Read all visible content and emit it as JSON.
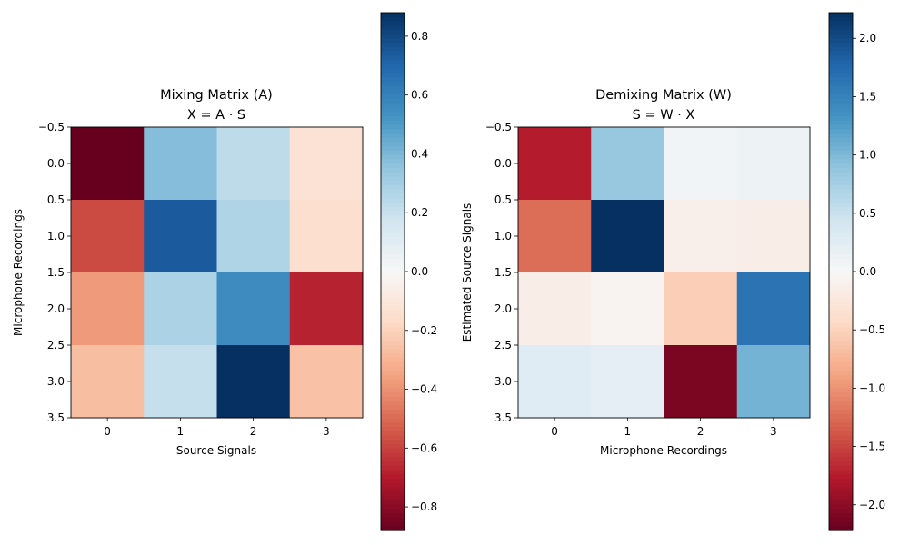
{
  "chart_data": [
    {
      "type": "heatmap",
      "title_line1": "Mixing Matrix (A)",
      "title_line2": "X = A · S",
      "xlabel": "Source Signals",
      "ylabel": "Microphone Recordings",
      "xticks": [
        "0",
        "1",
        "2",
        "3"
      ],
      "yticks": [
        "−0.5",
        "0.0",
        "0.5",
        "1.0",
        "1.5",
        "2.0",
        "2.5",
        "3.0",
        "3.5"
      ],
      "colormap": "RdBu",
      "vlim": [
        -0.88,
        0.88
      ],
      "colorbar_ticks": [
        {
          "value": 0.8,
          "label": "0.8"
        },
        {
          "value": 0.6,
          "label": "0.6"
        },
        {
          "value": 0.4,
          "label": "0.4"
        },
        {
          "value": 0.2,
          "label": "0.2"
        },
        {
          "value": 0.0,
          "label": "0.0"
        },
        {
          "value": -0.2,
          "label": "−0.2"
        },
        {
          "value": -0.4,
          "label": "−0.4"
        },
        {
          "value": -0.6,
          "label": "−0.6"
        },
        {
          "value": -0.8,
          "label": "−0.8"
        }
      ],
      "values": [
        [
          -0.88,
          0.38,
          0.23,
          -0.13
        ],
        [
          -0.58,
          0.74,
          0.27,
          -0.15
        ],
        [
          -0.38,
          0.28,
          0.56,
          -0.68
        ],
        [
          -0.27,
          0.21,
          0.88,
          -0.26
        ]
      ]
    },
    {
      "type": "heatmap",
      "title_line1": "Demixing Matrix (W)",
      "title_line2": "S = W · X",
      "xlabel": "Microphone Recordings",
      "ylabel": "Estimated Source Signals",
      "xticks": [
        "0",
        "1",
        "2",
        "3"
      ],
      "yticks": [
        "−0.5",
        "0.0",
        "0.5",
        "1.0",
        "1.5",
        "2.0",
        "2.5",
        "3.0",
        "3.5"
      ],
      "colormap": "RdBu",
      "vlim": [
        -2.22,
        2.22
      ],
      "colorbar_ticks": [
        {
          "value": 2.0,
          "label": "2.0"
        },
        {
          "value": 1.5,
          "label": "1.5"
        },
        {
          "value": 1.0,
          "label": "1.0"
        },
        {
          "value": 0.5,
          "label": "0.5"
        },
        {
          "value": 0.0,
          "label": "0.0"
        },
        {
          "value": -0.5,
          "label": "−0.5"
        },
        {
          "value": -1.0,
          "label": "−1.0"
        },
        {
          "value": -1.5,
          "label": "−1.5"
        },
        {
          "value": -2.0,
          "label": "−2.0"
        }
      ],
      "values": [
        [
          -1.75,
          0.85,
          0.08,
          0.12
        ],
        [
          -1.25,
          2.22,
          -0.12,
          -0.15
        ],
        [
          -0.15,
          -0.06,
          -0.55,
          1.65
        ],
        [
          0.28,
          0.22,
          -2.1,
          1.05
        ]
      ]
    }
  ]
}
